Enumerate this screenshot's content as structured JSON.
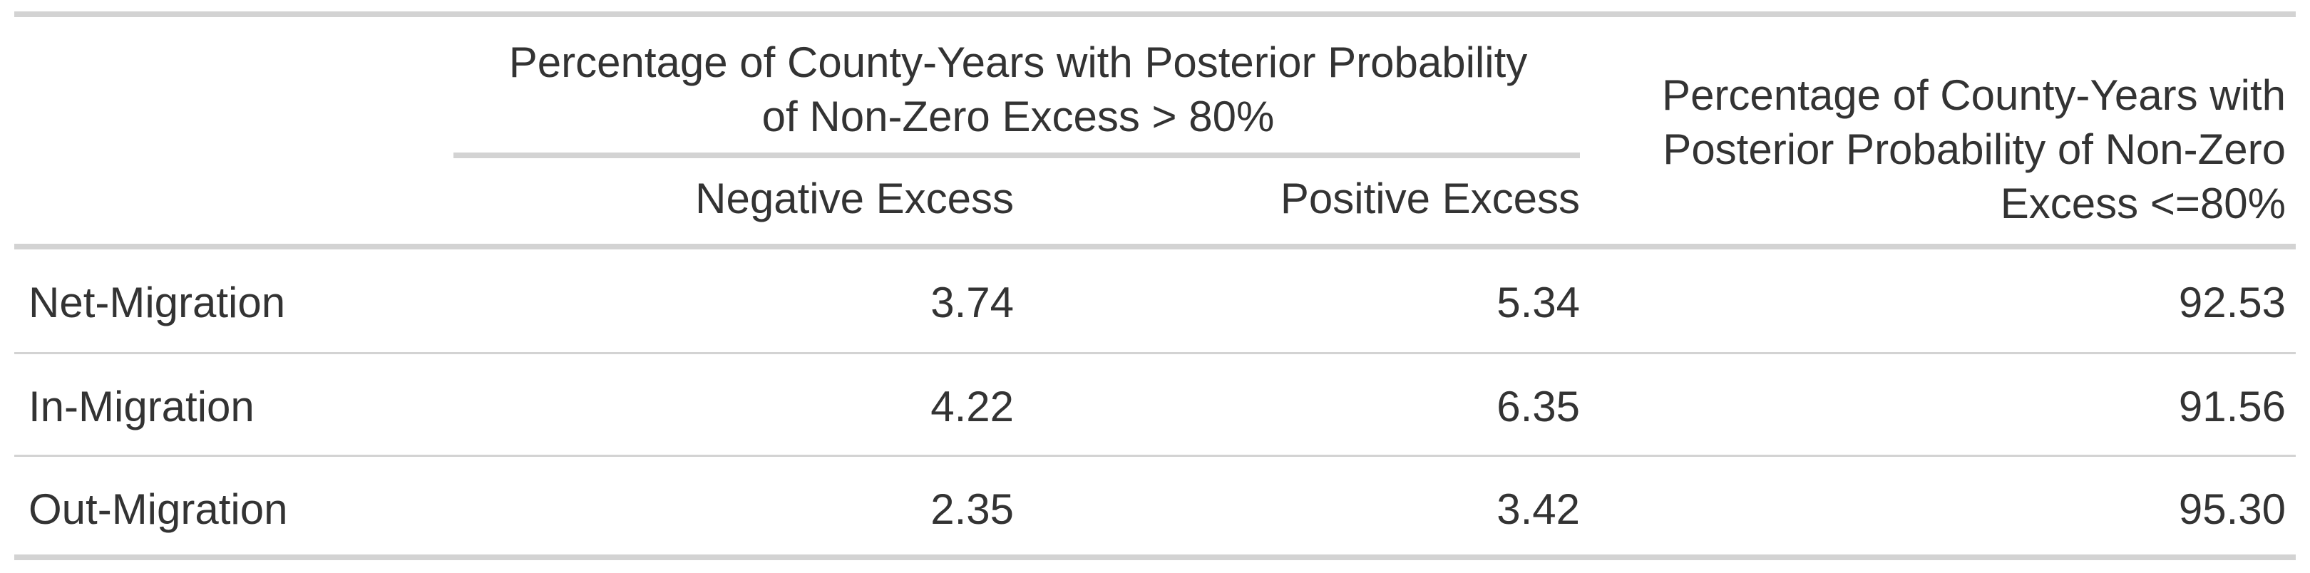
{
  "table": {
    "spanner_line1": "Percentage of County-Years with Posterior Probability",
    "spanner_line2": "of Non-Zero Excess > 80%",
    "col_negative": "Negative Excess",
    "col_positive": "Positive Excess",
    "col_low_line1": "Percentage of County-Years with",
    "col_low_line2": "Posterior Probability of Non-Zero",
    "col_low_line3": "Excess <=80%",
    "rows": [
      {
        "label": "Net-Migration",
        "negative": "3.74",
        "positive": "5.34",
        "low": "92.53"
      },
      {
        "label": "In-Migration",
        "negative": "4.22",
        "positive": "6.35",
        "low": "91.56"
      },
      {
        "label": "Out-Migration",
        "negative": "2.35",
        "positive": "3.42",
        "low": "95.30"
      }
    ]
  }
}
